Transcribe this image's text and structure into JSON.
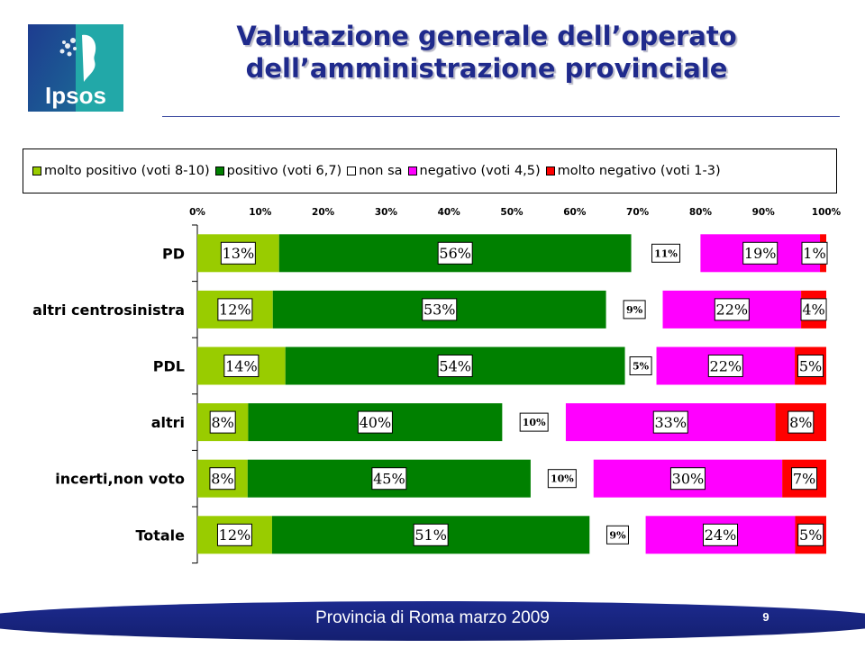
{
  "logo": {
    "text": "Ipsos"
  },
  "title": {
    "line1": "Valutazione generale dell’operato",
    "line2": "dell’amministrazione provinciale"
  },
  "footer": {
    "text": "Provincia di Roma marzo 2009",
    "page_number": "9"
  },
  "colors": {
    "title": "#1f2a8c",
    "footer": "#1c2a8e",
    "molto_positivo": "#99cc00",
    "positivo": "#008000",
    "non_sa": "#ffffff",
    "negativo": "#ff00ff",
    "molto_negativo": "#ff0000"
  },
  "chart_data": {
    "type": "bar",
    "orientation": "horizontal",
    "stacked": "percent",
    "categories": [
      "PD",
      "altri centrosinistra",
      "PDL",
      "altri",
      "incerti,non voto",
      "Totale"
    ],
    "x_ticks": [
      "0%",
      "10%",
      "20%",
      "30%",
      "40%",
      "50%",
      "60%",
      "70%",
      "80%",
      "90%",
      "100%"
    ],
    "xlim": [
      0,
      100
    ],
    "legend_position": "top",
    "grid": false,
    "series": [
      {
        "name": "molto positivo (voti 8-10)",
        "color": "#99cc00",
        "values": [
          13,
          12,
          14,
          8,
          8,
          12
        ],
        "labels": [
          "13%",
          "12%",
          "14%",
          "8%",
          "8%",
          "12%"
        ]
      },
      {
        "name": "positivo (voti 6,7)",
        "color": "#008000",
        "values": [
          56,
          53,
          54,
          40,
          45,
          51
        ],
        "labels": [
          "56%",
          "53%",
          "54%",
          "40%",
          "45%",
          "51%"
        ]
      },
      {
        "name": "non sa",
        "color": "#ffffff",
        "values": [
          11,
          9,
          5,
          10,
          10,
          9
        ],
        "labels": [
          "11%",
          "9%",
          "5%",
          "10%",
          "10%",
          "9%"
        ]
      },
      {
        "name": "negativo (voti 4,5)",
        "color": "#ff00ff",
        "values": [
          19,
          22,
          22,
          33,
          30,
          24
        ],
        "labels": [
          "19%",
          "22%",
          "22%",
          "33%",
          "30%",
          "24%"
        ]
      },
      {
        "name": "molto negativo (voti 1-3)",
        "color": "#ff0000",
        "values": [
          1,
          4,
          5,
          8,
          7,
          5
        ],
        "labels": [
          "1%",
          "4%",
          "5%",
          "8%",
          "7%",
          "5%"
        ]
      }
    ]
  }
}
